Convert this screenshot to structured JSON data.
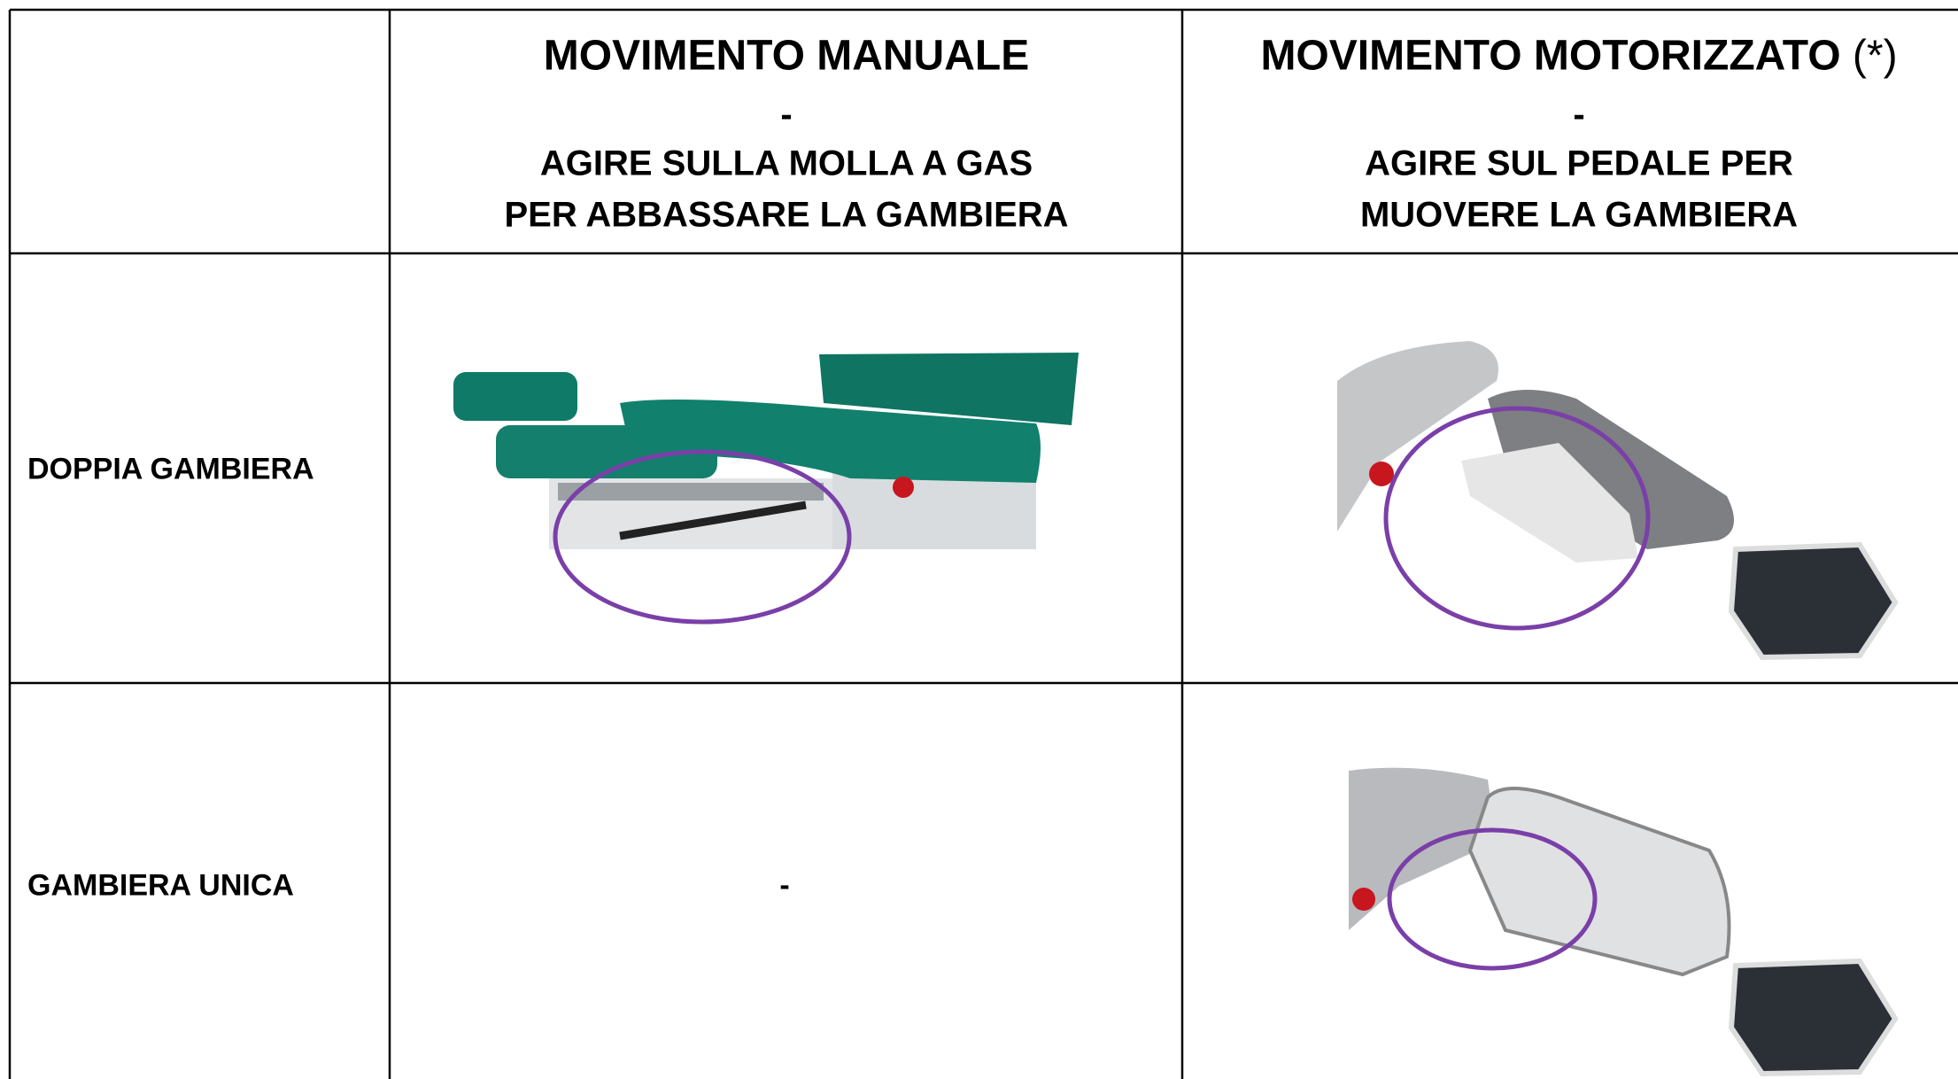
{
  "header": {
    "columns": [
      {
        "title": "MOVIMENTO MANUALE",
        "separator": "-",
        "description": [
          "AGIRE SULLA MOLLA A GAS",
          "PER ABBASSARE LA GAMBIERA"
        ]
      },
      {
        "title": "MOVIMENTO MOTORIZZATO",
        "title_note": "(*)",
        "separator": "-",
        "description": [
          "AGIRE SUL PEDALE PER",
          "MUOVERE LA GAMBIERA"
        ]
      }
    ]
  },
  "rows": [
    {
      "label": "DOPPIA GAMBIERA"
    },
    {
      "label": "GAMBIERA UNICA",
      "manual": "-"
    }
  ]
}
